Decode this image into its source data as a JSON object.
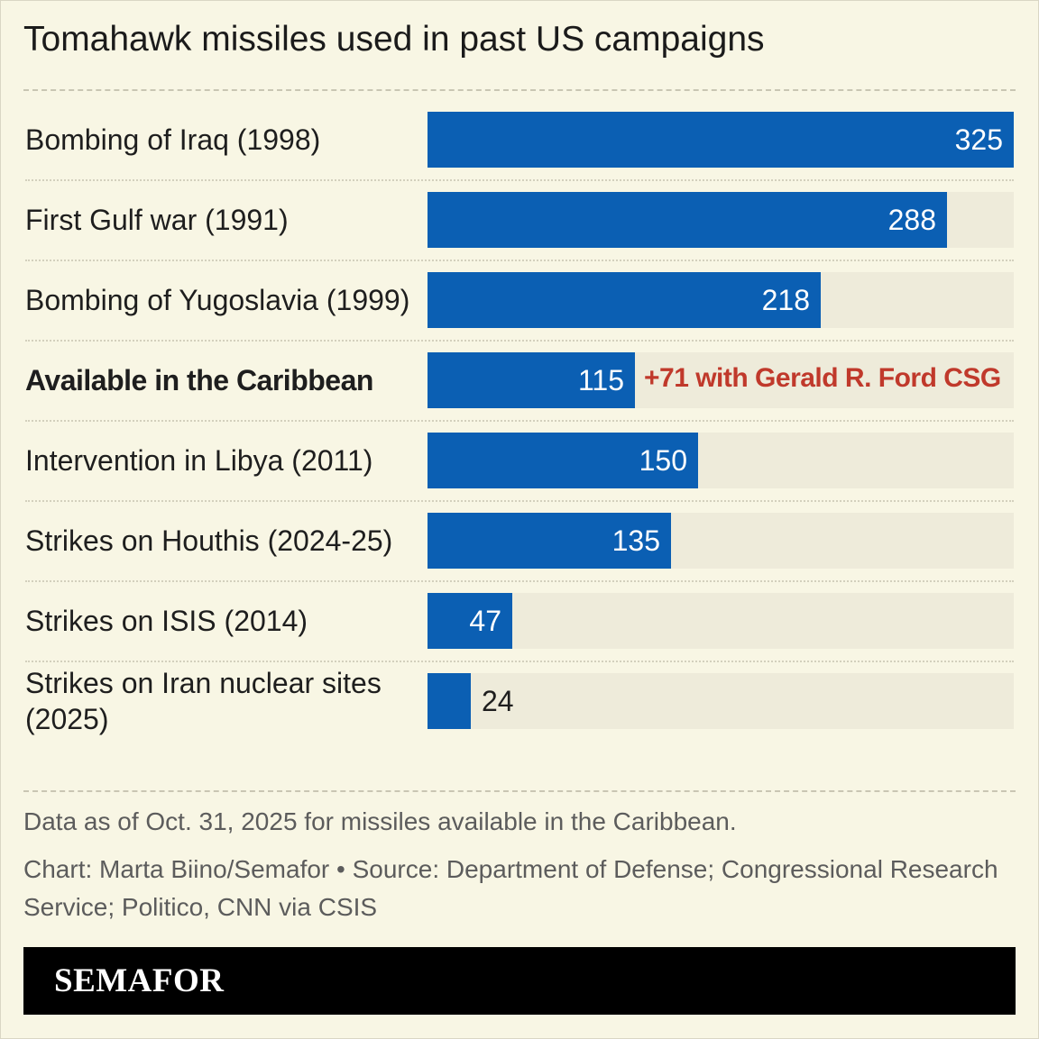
{
  "title": "Tomahawk missiles used in past US campaigns",
  "colors": {
    "bar": "#0b5fb3",
    "track": "#eeebda",
    "background": "#f8f6e4",
    "annotation": "#c0392b"
  },
  "chart_data": {
    "type": "bar",
    "orientation": "horizontal",
    "title": "Tomahawk missiles used in past US campaigns",
    "categories": [
      "Bombing of Iraq (1998)",
      "First Gulf war (1991)",
      "Bombing of Yugoslavia (1999)",
      "Available in the Caribbean",
      "Intervention in Libya (2011)",
      "Strikes on Houthis (2024-25)",
      "Strikes on ISIS (2014)",
      "Strikes on Iran nuclear sites (2025)"
    ],
    "values": [
      325,
      288,
      218,
      115,
      150,
      135,
      47,
      24
    ],
    "xlim": [
      0,
      325
    ],
    "highlight_category": "Available in the Caribbean",
    "annotation": "+71 with Gerald R. Ford CSG",
    "grid": false
  },
  "footnote": "Data as of Oct. 31, 2025 for missiles available in the Caribbean.",
  "credit": "Chart: Marta Biino/Semafor • Source: Department of Defense; Congressional Research Service; Politico, CNN via CSIS",
  "brand": "SEMAFOR"
}
